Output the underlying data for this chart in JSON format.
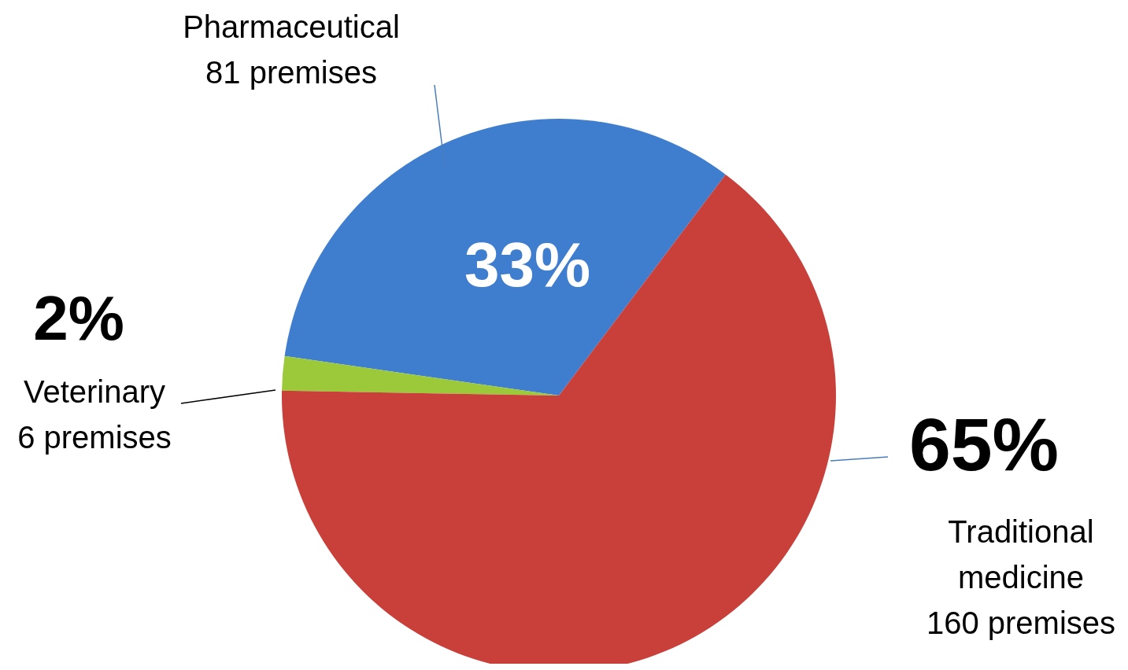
{
  "chart_data": {
    "type": "pie",
    "categories": [
      "Pharmaceutical\n81 premises",
      "Veterinary\n6 premises",
      "Traditional\nmedicine\n160 premises"
    ],
    "values": [
      33,
      2,
      65
    ],
    "value_labels": [
      "33%",
      "2%",
      "65%"
    ],
    "colors": [
      "#3f7dcf",
      "#9bc93a",
      "#c9403b"
    ]
  }
}
